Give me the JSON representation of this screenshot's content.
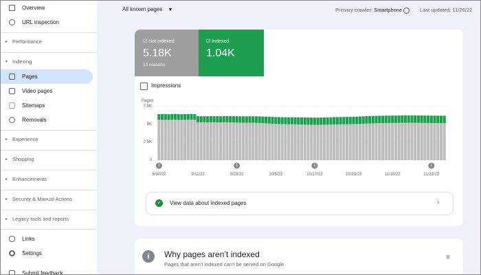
{
  "sidebar": {
    "items": [
      "Overview",
      "URL inspection"
    ],
    "sections": [
      "Performance",
      "Indexing"
    ],
    "indexing_items": [
      "Pages",
      "Video pages",
      "Sitemaps",
      "Removals"
    ],
    "more_sections": [
      "Experience",
      "Shopping",
      "Enhancements",
      "Security & Manual Actions",
      "Legacy tools and reports"
    ],
    "bottom_items": [
      "Links",
      "Settings",
      "Submit feedback"
    ]
  },
  "header": {
    "filter": "All known pages",
    "crawler_label": "Primary crawler:",
    "crawler": "Smartphone",
    "last_updated": "Last updated: 11/26/22"
  },
  "impressions": "Impressions",
  "chart_data": {
    "type": "stacked-bar",
    "y_label": "Pages",
    "ylim": [
      0,
      7500
    ],
    "yticks": [
      {
        "value": 0,
        "label": "0"
      },
      {
        "value": 2500,
        "label": "2.5K"
      },
      {
        "value": 5000,
        "label": "5K"
      },
      {
        "value": 7500,
        "label": "7.5K"
      }
    ],
    "grid": true,
    "categories": [
      "8/30/22",
      null,
      null,
      null,
      null,
      null,
      null,
      null,
      null,
      null,
      null,
      null,
      "9/11/22",
      null,
      null,
      null,
      null,
      null,
      null,
      null,
      null,
      null,
      null,
      null,
      "9/23/22",
      null,
      null,
      null,
      null,
      null,
      null,
      null,
      null,
      null,
      null,
      null,
      "10/5/22",
      null,
      null,
      null,
      null,
      null,
      null,
      null,
      null,
      null,
      null,
      null,
      "10/17/22",
      null,
      null,
      null,
      null,
      null,
      null,
      null,
      null,
      null,
      null,
      null,
      "10/29/22",
      null,
      null,
      null,
      null,
      null,
      null,
      null,
      null,
      null,
      null,
      null,
      "11/10/22",
      null,
      null,
      null,
      null,
      null,
      null,
      null,
      null,
      null,
      null,
      null,
      "11/22/22",
      null,
      null,
      null,
      null
    ],
    "series": [
      {
        "name": "Not indexed",
        "color": "#bdbdbd",
        "card_color": "#9e9e9e",
        "total_label": "5.18K",
        "subtitle": "13 reasons",
        "values": [
          5660,
          5650,
          5650,
          5640,
          5650,
          5660,
          5650,
          5640,
          5650,
          5650,
          5660,
          5650,
          5310,
          5300,
          5300,
          5290,
          5300,
          5300,
          5290,
          5280,
          5300,
          5290,
          5280,
          5270,
          5260,
          5250,
          5240,
          5240,
          5230,
          5230,
          5220,
          5200,
          5180,
          5150,
          5120,
          5100,
          5080,
          5060,
          5050,
          5040,
          5030,
          5020,
          5010,
          5000,
          4990,
          4980,
          4970,
          4960,
          4950,
          4950,
          4960,
          4970,
          4980,
          4990,
          5000,
          5000,
          5010,
          5020,
          5030,
          5040,
          5050,
          5060,
          5080,
          5100,
          5120,
          5140,
          5160,
          5170,
          5180,
          5190,
          5200,
          5200,
          5210,
          5210,
          5220,
          5220,
          5230,
          5230,
          5230,
          5220,
          5220,
          5210,
          5200,
          5200,
          5190,
          5190,
          5180,
          5180,
          5180
        ]
      },
      {
        "name": "Indexed",
        "color": "#1e9e4f",
        "card_color": "#1e9e4f",
        "total_label": "1.04K",
        "values": [
          790,
          800,
          800,
          790,
          800,
          810,
          800,
          790,
          800,
          800,
          800,
          790,
          830,
          840,
          840,
          850,
          850,
          850,
          860,
          860,
          860,
          870,
          870,
          870,
          880,
          880,
          890,
          890,
          900,
          900,
          910,
          920,
          930,
          940,
          940,
          950,
          950,
          960,
          960,
          970,
          970,
          980,
          980,
          990,
          990,
          1000,
          1000,
          1000,
          1000,
          1000,
          1010,
          1010,
          1010,
          1010,
          1020,
          1020,
          1020,
          1020,
          1020,
          1020,
          1020,
          1020,
          1030,
          1030,
          1030,
          1030,
          1030,
          1030,
          1030,
          1030,
          1030,
          1030,
          1030,
          1030,
          1030,
          1040,
          1040,
          1040,
          1040,
          1040,
          1040,
          1040,
          1040,
          1040,
          1040,
          1040,
          1040,
          1040,
          1040
        ]
      }
    ],
    "annotations": [
      {
        "at": 0,
        "label": "1"
      },
      {
        "at": 24,
        "label": "1"
      },
      {
        "at": 48,
        "label": "1"
      },
      {
        "at": 84,
        "label": "1"
      }
    ]
  },
  "link": "View data about indexed pages",
  "why": {
    "title": "Why pages aren’t indexed",
    "subtitle": "Pages that aren't indexed can't be served on Google"
  }
}
